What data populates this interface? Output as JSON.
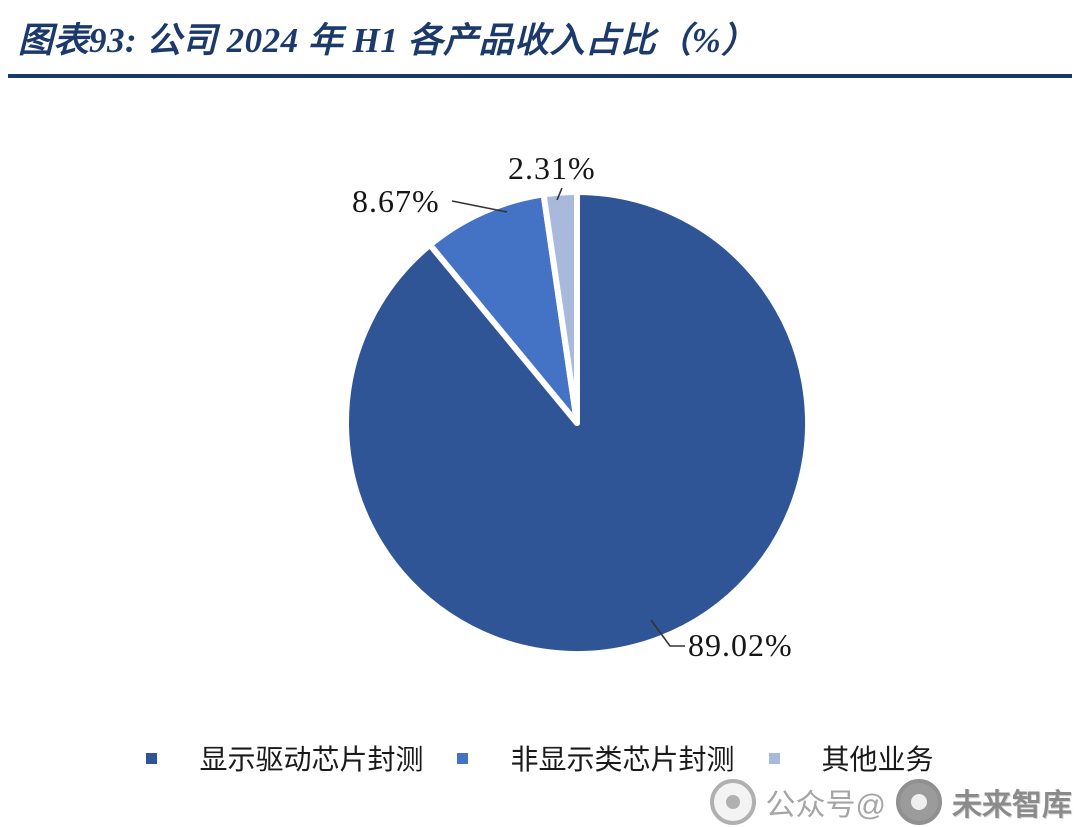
{
  "header": {
    "title": "图表93: 公司 2024 年 H1 各产品收入占比（%）"
  },
  "chart_data": {
    "type": "pie",
    "title": "公司 2024 年 H1 各产品收入占比（%）",
    "categories": [
      "显示驱动芯片封测",
      "非显示类芯片封测",
      "其他业务"
    ],
    "values": [
      89.02,
      8.67,
      2.31
    ],
    "labels": [
      "89.02%",
      "8.67%",
      "2.31%"
    ],
    "colors": [
      "#2F5597",
      "#4472C4",
      "#A8B9DC"
    ],
    "slice_border_color": "#FFFFFF",
    "start_angle_deg": 0,
    "direction": "clockwise",
    "legend_position": "bottom"
  },
  "legend": {
    "items": [
      {
        "label": "显示驱动芯片封测",
        "color": "#2F5597"
      },
      {
        "label": "非显示类芯片封测",
        "color": "#4472C4"
      },
      {
        "label": "其他业务",
        "color": "#A8B9DC"
      }
    ]
  },
  "watermark": {
    "prefix": "公众号@",
    "name": "未来智库"
  }
}
